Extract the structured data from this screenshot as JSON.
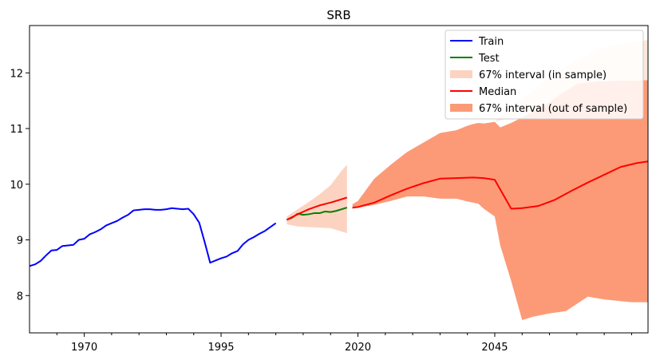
{
  "colors": {
    "train": "#0000ff",
    "test": "#008000",
    "median": "#ff0000",
    "interval_in_sample": "#fcd3c1",
    "interval_out_of_sample": "#fc9a77",
    "interval_out_of_sample_light": "#fee6da",
    "axis": "#000000",
    "background": "#ffffff"
  },
  "chart_data": {
    "type": "line",
    "title": "SRB",
    "xlabel": "",
    "ylabel": "",
    "xlim": [
      1960,
      2073
    ],
    "ylim": [
      7.33,
      12.85
    ],
    "x_ticks": [
      1970,
      1995,
      2020,
      2045
    ],
    "x_tick_labels": [
      "1970",
      "1995",
      "2020",
      "2045"
    ],
    "y_ticks": [
      8,
      9,
      10,
      11,
      12
    ],
    "y_tick_labels": [
      "8",
      "9",
      "10",
      "11",
      "12"
    ],
    "grid": false,
    "legend_position": "top-right",
    "legend": [
      {
        "label": "Train",
        "kind": "line",
        "color_key": "train"
      },
      {
        "label": "Test",
        "kind": "line",
        "color_key": "test"
      },
      {
        "label": "67% interval (in sample)",
        "kind": "band",
        "color_key": "interval_in_sample"
      },
      {
        "label": "Median",
        "kind": "line",
        "color_key": "median"
      },
      {
        "label": "67% interval (out of sample)",
        "kind": "band",
        "color_key": "interval_out_of_sample"
      }
    ],
    "series": [
      {
        "name": "Train",
        "kind": "line",
        "color_key": "train",
        "x": [
          1960,
          1961,
          1962,
          1963,
          1964,
          1965,
          1966,
          1967,
          1968,
          1969,
          1970,
          1971,
          1972,
          1973,
          1974,
          1975,
          1976,
          1977,
          1978,
          1979,
          1980,
          1981,
          1982,
          1983,
          1984,
          1985,
          1986,
          1987,
          1988,
          1989,
          1990,
          1991,
          1992,
          1993,
          1994,
          1995,
          1996,
          1997,
          1998,
          1999,
          2000,
          2001,
          2002,
          2003,
          2004,
          2005
        ],
        "y": [
          8.53,
          8.56,
          8.62,
          8.72,
          8.81,
          8.82,
          8.89,
          8.9,
          8.91,
          9.0,
          9.02,
          9.1,
          9.14,
          9.19,
          9.26,
          9.3,
          9.34,
          9.4,
          9.45,
          9.53,
          9.54,
          9.55,
          9.55,
          9.54,
          9.54,
          9.55,
          9.57,
          9.56,
          9.55,
          9.56,
          9.46,
          9.31,
          8.96,
          8.59,
          8.63,
          8.67,
          8.7,
          8.76,
          8.8,
          8.92,
          9.0,
          9.05,
          9.11,
          9.16,
          9.23,
          9.3
        ]
      },
      {
        "name": "Test",
        "kind": "line",
        "color_key": "test",
        "x": [
          2007,
          2008,
          2009,
          2010,
          2011,
          2012,
          2013,
          2014,
          2015,
          2016,
          2017,
          2018
        ],
        "y": [
          9.36,
          9.4,
          9.47,
          9.45,
          9.46,
          9.48,
          9.48,
          9.51,
          9.5,
          9.52,
          9.55,
          9.58
        ]
      },
      {
        "name": "67% interval (in sample)",
        "kind": "band",
        "color_key": "interval_in_sample",
        "x": [
          2007,
          2009,
          2011,
          2013,
          2015,
          2017,
          2018
        ],
        "upper": [
          9.42,
          9.55,
          9.68,
          9.82,
          9.98,
          10.24,
          10.35
        ],
        "lower": [
          9.28,
          9.24,
          9.23,
          9.22,
          9.21,
          9.15,
          9.12
        ]
      },
      {
        "name": "Median (in sample)",
        "kind": "line",
        "color_key": "median",
        "x": [
          2007,
          2009,
          2011,
          2013,
          2015,
          2017,
          2018
        ],
        "y": [
          9.36,
          9.46,
          9.55,
          9.62,
          9.67,
          9.73,
          9.76
        ]
      },
      {
        "name": "67% interval (out of sample)",
        "kind": "band",
        "color_key": "interval_out_of_sample",
        "x": [
          2019,
          2020,
          2023,
          2026,
          2029,
          2032,
          2035,
          2038,
          2040,
          2041,
          2042,
          2043,
          2045,
          2046,
          2048,
          2050,
          2052,
          2055,
          2058,
          2060,
          2062,
          2065,
          2068,
          2070,
          2073
        ],
        "upper": [
          9.64,
          9.7,
          10.1,
          10.35,
          10.58,
          10.75,
          10.92,
          10.97,
          11.05,
          11.08,
          11.1,
          11.09,
          11.12,
          11.02,
          11.1,
          11.2,
          11.3,
          11.47,
          11.7,
          11.82,
          11.84,
          11.85,
          11.86,
          11.86,
          11.87
        ],
        "lower": [
          9.56,
          9.58,
          9.63,
          9.7,
          9.78,
          9.78,
          9.74,
          9.74,
          9.69,
          9.67,
          9.65,
          9.56,
          9.42,
          8.9,
          8.26,
          7.56,
          7.62,
          7.68,
          7.72,
          7.85,
          7.98,
          7.93,
          7.9,
          7.88,
          7.88
        ]
      },
      {
        "name": "Median (out of sample)",
        "kind": "line",
        "color_key": "median",
        "x": [
          2019,
          2020,
          2023,
          2026,
          2029,
          2032,
          2035,
          2038,
          2041,
          2043,
          2045,
          2048,
          2050,
          2053,
          2056,
          2059,
          2062,
          2065,
          2068,
          2071,
          2073
        ],
        "y": [
          9.58,
          9.59,
          9.67,
          9.8,
          9.92,
          10.02,
          10.1,
          10.11,
          10.12,
          10.11,
          10.08,
          9.56,
          9.57,
          9.61,
          9.72,
          9.88,
          10.03,
          10.17,
          10.31,
          10.38,
          10.41
        ]
      },
      {
        "name": "Upper forecast tail",
        "kind": "band",
        "color_key": "interval_out_of_sample_light",
        "x": [
          2045,
          2048,
          2052,
          2056,
          2060,
          2064,
          2068,
          2073
        ],
        "upper": [
          11.12,
          11.4,
          11.68,
          11.98,
          12.22,
          12.42,
          12.52,
          12.59
        ],
        "lower": [
          11.12,
          11.2,
          11.3,
          11.55,
          11.8,
          11.85,
          11.86,
          11.87
        ]
      }
    ]
  }
}
